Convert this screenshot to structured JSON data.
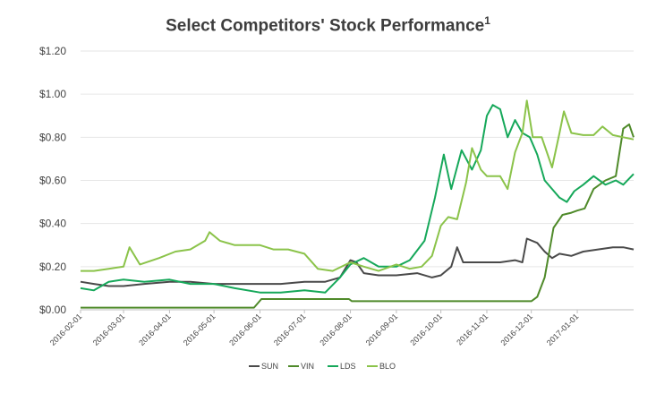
{
  "chart_data": {
    "type": "line",
    "title": "Select Competitors' Stock Performance",
    "title_superscript": "1",
    "xlabel": "",
    "ylabel": "",
    "ylim": [
      0,
      1.2
    ],
    "y_ticks": [
      "$0.00",
      "$0.20",
      "$0.40",
      "$0.60",
      "$0.80",
      "$1.00",
      "$1.20"
    ],
    "y_tick_values": [
      0,
      0.2,
      0.4,
      0.6,
      0.8,
      1.0,
      1.2
    ],
    "x_range": [
      "2016-02-01",
      "2017-02-08"
    ],
    "x_ticks": [
      "2016-02-01",
      "2016-03-01",
      "2016-04-01",
      "2016-05-01",
      "2016-06-01",
      "2016-07-01",
      "2016-08-01",
      "2016-09-01",
      "2016-10-01",
      "2016-11-01",
      "2016-12-01",
      "2017-01-01"
    ],
    "grid": "horizontal",
    "legend_position": "bottom",
    "series": [
      {
        "name": "SUN",
        "color": "#4a4a4a",
        "points": [
          [
            "2016-02-01",
            0.13
          ],
          [
            "2016-02-10",
            0.12
          ],
          [
            "2016-02-20",
            0.11
          ],
          [
            "2016-03-01",
            0.11
          ],
          [
            "2016-03-15",
            0.12
          ],
          [
            "2016-04-01",
            0.13
          ],
          [
            "2016-04-15",
            0.13
          ],
          [
            "2016-05-01",
            0.12
          ],
          [
            "2016-05-15",
            0.12
          ],
          [
            "2016-06-01",
            0.12
          ],
          [
            "2016-06-15",
            0.12
          ],
          [
            "2016-07-01",
            0.13
          ],
          [
            "2016-07-15",
            0.13
          ],
          [
            "2016-07-25",
            0.15
          ],
          [
            "2016-08-01",
            0.23
          ],
          [
            "2016-08-05",
            0.22
          ],
          [
            "2016-08-10",
            0.17
          ],
          [
            "2016-08-20",
            0.16
          ],
          [
            "2016-09-01",
            0.16
          ],
          [
            "2016-09-15",
            0.17
          ],
          [
            "2016-09-25",
            0.15
          ],
          [
            "2016-10-01",
            0.16
          ],
          [
            "2016-10-08",
            0.2
          ],
          [
            "2016-10-12",
            0.29
          ],
          [
            "2016-10-16",
            0.22
          ],
          [
            "2016-10-25",
            0.22
          ],
          [
            "2016-11-01",
            0.22
          ],
          [
            "2016-11-10",
            0.22
          ],
          [
            "2016-11-20",
            0.23
          ],
          [
            "2016-11-25",
            0.22
          ],
          [
            "2016-11-28",
            0.33
          ],
          [
            "2016-12-05",
            0.31
          ],
          [
            "2016-12-10",
            0.27
          ],
          [
            "2016-12-15",
            0.24
          ],
          [
            "2016-12-20",
            0.26
          ],
          [
            "2016-12-28",
            0.25
          ],
          [
            "2017-01-05",
            0.27
          ],
          [
            "2017-01-15",
            0.28
          ],
          [
            "2017-01-25",
            0.29
          ],
          [
            "2017-02-01",
            0.29
          ],
          [
            "2017-02-08",
            0.28
          ]
        ]
      },
      {
        "name": "VIN",
        "color": "#4f8a2a",
        "points": [
          [
            "2016-02-01",
            0.01
          ],
          [
            "2016-03-01",
            0.01
          ],
          [
            "2016-04-01",
            0.01
          ],
          [
            "2016-05-01",
            0.01
          ],
          [
            "2016-05-28",
            0.01
          ],
          [
            "2016-06-02",
            0.05
          ],
          [
            "2016-07-01",
            0.05
          ],
          [
            "2016-07-31",
            0.05
          ],
          [
            "2016-08-02",
            0.04
          ],
          [
            "2016-09-01",
            0.04
          ],
          [
            "2016-10-01",
            0.04
          ],
          [
            "2016-11-01",
            0.04
          ],
          [
            "2016-12-01",
            0.04
          ],
          [
            "2016-12-05",
            0.06
          ],
          [
            "2016-12-10",
            0.15
          ],
          [
            "2016-12-16",
            0.38
          ],
          [
            "2016-12-22",
            0.44
          ],
          [
            "2016-12-28",
            0.45
          ],
          [
            "2017-01-01",
            0.46
          ],
          [
            "2017-01-06",
            0.47
          ],
          [
            "2017-01-12",
            0.56
          ],
          [
            "2017-01-20",
            0.6
          ],
          [
            "2017-01-27",
            0.62
          ],
          [
            "2017-02-01",
            0.84
          ],
          [
            "2017-02-05",
            0.86
          ],
          [
            "2017-02-08",
            0.8
          ]
        ]
      },
      {
        "name": "LDS",
        "color": "#16a85a",
        "points": [
          [
            "2016-02-01",
            0.1
          ],
          [
            "2016-02-10",
            0.09
          ],
          [
            "2016-02-20",
            0.13
          ],
          [
            "2016-03-01",
            0.14
          ],
          [
            "2016-03-15",
            0.13
          ],
          [
            "2016-04-01",
            0.14
          ],
          [
            "2016-04-15",
            0.12
          ],
          [
            "2016-05-01",
            0.12
          ],
          [
            "2016-05-15",
            0.1
          ],
          [
            "2016-06-01",
            0.08
          ],
          [
            "2016-06-15",
            0.08
          ],
          [
            "2016-07-01",
            0.09
          ],
          [
            "2016-07-15",
            0.08
          ],
          [
            "2016-07-25",
            0.15
          ],
          [
            "2016-08-01",
            0.21
          ],
          [
            "2016-08-10",
            0.24
          ],
          [
            "2016-08-20",
            0.2
          ],
          [
            "2016-09-01",
            0.2
          ],
          [
            "2016-09-10",
            0.23
          ],
          [
            "2016-09-20",
            0.32
          ],
          [
            "2016-09-27",
            0.52
          ],
          [
            "2016-10-03",
            0.72
          ],
          [
            "2016-10-08",
            0.56
          ],
          [
            "2016-10-15",
            0.74
          ],
          [
            "2016-10-22",
            0.65
          ],
          [
            "2016-10-28",
            0.74
          ],
          [
            "2016-11-01",
            0.9
          ],
          [
            "2016-11-05",
            0.95
          ],
          [
            "2016-11-10",
            0.93
          ],
          [
            "2016-11-15",
            0.8
          ],
          [
            "2016-11-20",
            0.88
          ],
          [
            "2016-11-25",
            0.82
          ],
          [
            "2016-11-30",
            0.8
          ],
          [
            "2016-12-05",
            0.72
          ],
          [
            "2016-12-10",
            0.6
          ],
          [
            "2016-12-15",
            0.56
          ],
          [
            "2016-12-20",
            0.52
          ],
          [
            "2016-12-25",
            0.5
          ],
          [
            "2016-12-30",
            0.55
          ],
          [
            "2017-01-05",
            0.58
          ],
          [
            "2017-01-12",
            0.62
          ],
          [
            "2017-01-20",
            0.58
          ],
          [
            "2017-01-27",
            0.6
          ],
          [
            "2017-02-01",
            0.58
          ],
          [
            "2017-02-08",
            0.63
          ]
        ]
      },
      {
        "name": "BLO",
        "color": "#8bc34a",
        "points": [
          [
            "2016-02-01",
            0.18
          ],
          [
            "2016-02-10",
            0.18
          ],
          [
            "2016-02-20",
            0.19
          ],
          [
            "2016-03-01",
            0.2
          ],
          [
            "2016-03-05",
            0.29
          ],
          [
            "2016-03-12",
            0.21
          ],
          [
            "2016-03-25",
            0.24
          ],
          [
            "2016-04-05",
            0.27
          ],
          [
            "2016-04-15",
            0.28
          ],
          [
            "2016-04-25",
            0.32
          ],
          [
            "2016-04-28",
            0.36
          ],
          [
            "2016-05-05",
            0.32
          ],
          [
            "2016-05-15",
            0.3
          ],
          [
            "2016-06-01",
            0.3
          ],
          [
            "2016-06-10",
            0.28
          ],
          [
            "2016-06-20",
            0.28
          ],
          [
            "2016-07-01",
            0.26
          ],
          [
            "2016-07-10",
            0.19
          ],
          [
            "2016-07-20",
            0.18
          ],
          [
            "2016-08-01",
            0.22
          ],
          [
            "2016-08-10",
            0.2
          ],
          [
            "2016-08-20",
            0.18
          ],
          [
            "2016-09-01",
            0.21
          ],
          [
            "2016-09-10",
            0.19
          ],
          [
            "2016-09-18",
            0.2
          ],
          [
            "2016-09-25",
            0.25
          ],
          [
            "2016-10-01",
            0.39
          ],
          [
            "2016-10-06",
            0.43
          ],
          [
            "2016-10-12",
            0.42
          ],
          [
            "2016-10-18",
            0.59
          ],
          [
            "2016-10-22",
            0.75
          ],
          [
            "2016-10-28",
            0.65
          ],
          [
            "2016-11-01",
            0.62
          ],
          [
            "2016-11-10",
            0.62
          ],
          [
            "2016-11-15",
            0.56
          ],
          [
            "2016-11-20",
            0.73
          ],
          [
            "2016-11-25",
            0.82
          ],
          [
            "2016-11-28",
            0.97
          ],
          [
            "2016-12-02",
            0.8
          ],
          [
            "2016-12-08",
            0.8
          ],
          [
            "2016-12-15",
            0.66
          ],
          [
            "2016-12-20",
            0.82
          ],
          [
            "2016-12-23",
            0.92
          ],
          [
            "2016-12-28",
            0.82
          ],
          [
            "2017-01-05",
            0.81
          ],
          [
            "2017-01-12",
            0.81
          ],
          [
            "2017-01-18",
            0.85
          ],
          [
            "2017-01-25",
            0.81
          ],
          [
            "2017-02-01",
            0.8
          ],
          [
            "2017-02-08",
            0.79
          ]
        ]
      }
    ]
  }
}
